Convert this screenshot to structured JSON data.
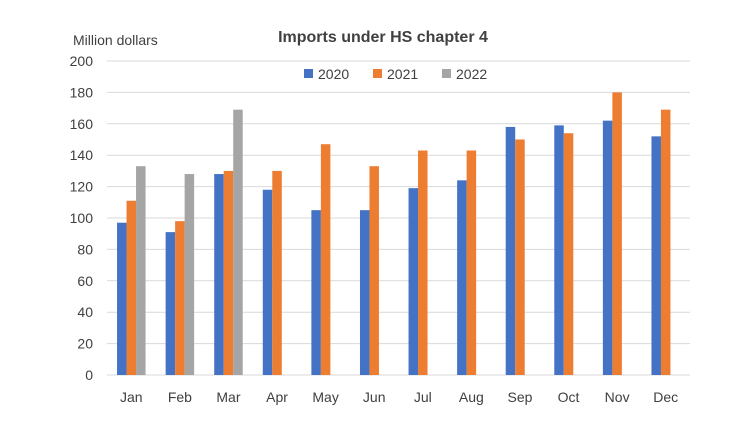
{
  "chart_data": {
    "type": "bar",
    "title": "Imports under HS chapter 4",
    "ylabel": "Million dollars",
    "xlabel": "",
    "categories": [
      "Jan",
      "Feb",
      "Mar",
      "Apr",
      "May",
      "Jun",
      "Jul",
      "Aug",
      "Sep",
      "Oct",
      "Nov",
      "Dec"
    ],
    "series": [
      {
        "name": "2020",
        "color": "#4472c4",
        "values": [
          97,
          91,
          128,
          118,
          105,
          105,
          119,
          124,
          158,
          159,
          162,
          152
        ]
      },
      {
        "name": "2021",
        "color": "#ed7d31",
        "values": [
          111,
          98,
          130,
          130,
          147,
          133,
          143,
          143,
          150,
          154,
          180,
          169
        ]
      },
      {
        "name": "2022",
        "color": "#a5a5a5",
        "values": [
          133,
          128,
          169,
          null,
          null,
          null,
          null,
          null,
          null,
          null,
          null,
          null
        ]
      }
    ],
    "ylim": [
      0,
      200
    ],
    "yticks": [
      "0",
      "20",
      "40",
      "60",
      "80",
      "100",
      "120",
      "140",
      "160",
      "180",
      "200"
    ],
    "grid": true,
    "legend_position": "top-center"
  }
}
